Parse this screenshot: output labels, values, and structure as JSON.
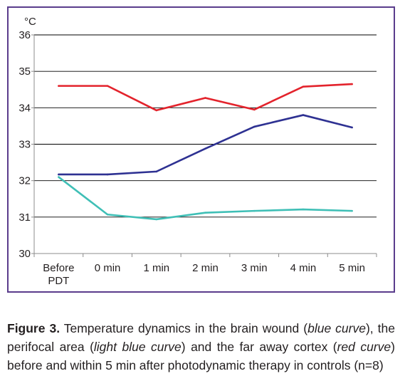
{
  "chart_data": {
    "type": "line",
    "unit_label": "°C",
    "categories": [
      "Before\nPDT",
      "0 min",
      "1 min",
      "2 min",
      "3 min",
      "4 min",
      "5 min"
    ],
    "ylim": [
      30,
      36
    ],
    "yticks": [
      30,
      31,
      32,
      33,
      34,
      35,
      36
    ],
    "grid": true,
    "series": [
      {
        "color": "#e3232c",
        "values": [
          34.6,
          34.6,
          33.93,
          34.27,
          33.95,
          34.58,
          34.65
        ]
      },
      {
        "color": "#2e3192",
        "values": [
          32.17,
          32.17,
          32.25,
          32.88,
          33.48,
          33.8,
          33.46
        ]
      },
      {
        "color": "#3fbfb6",
        "values": [
          32.1,
          31.07,
          30.94,
          31.12,
          31.17,
          31.21,
          31.17
        ]
      }
    ]
  },
  "caption": {
    "figure_label": "Figure 3.",
    "text_1": " Temperature dynamics in the brain wound (",
    "blue_curve": "blue curve",
    "text_2": "), the perifocal area (",
    "light_blue_curve": "light blue curve",
    "text_3": ") and the far away cortex (",
    "red_curve": "red curve",
    "text_4": ") before and within 5 min after photodynamic therapy in controls (n=8)"
  }
}
